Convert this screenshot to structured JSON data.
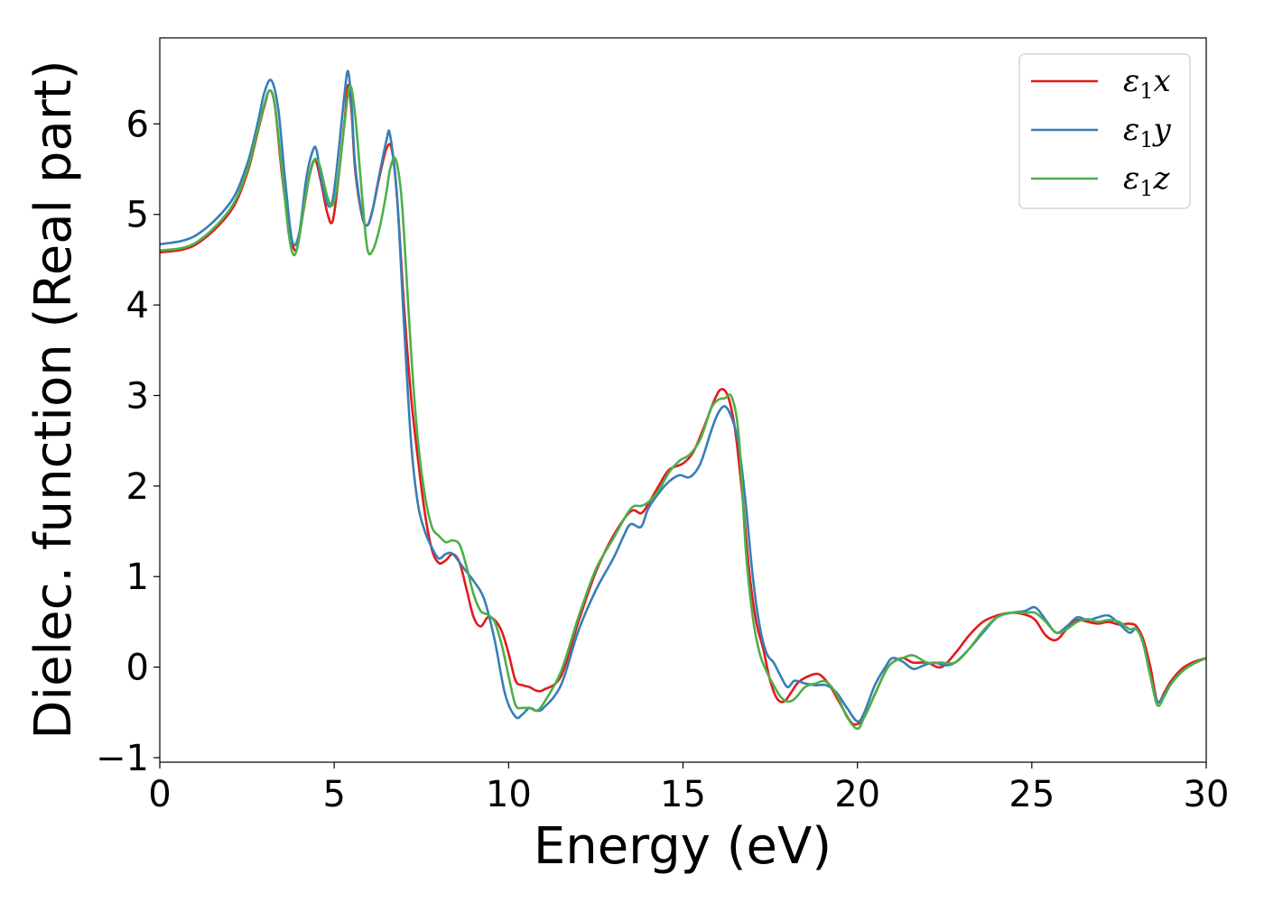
{
  "chart_data": {
    "type": "line",
    "title": "",
    "xlabel": "Energy (eV)",
    "ylabel": "Dielec. function (Real part)",
    "xlim": [
      0,
      30
    ],
    "ylim": [
      -1.05,
      6.95
    ],
    "xticks": [
      0,
      5,
      10,
      15,
      20,
      25,
      30
    ],
    "yticks": [
      -1,
      0,
      1,
      2,
      3,
      4,
      5,
      6
    ],
    "grid": false,
    "legend_position": "top-right",
    "series": [
      {
        "name": "ε1x",
        "legend_main": "ε",
        "legend_sub": "1",
        "legend_tail": "x",
        "color": "#e41a1c",
        "x": [
          0,
          1,
          2,
          2.5,
          2.8,
          3.0,
          3.15,
          3.3,
          3.5,
          3.7,
          3.9,
          4.1,
          4.3,
          4.45,
          4.6,
          4.8,
          4.95,
          5.1,
          5.3,
          5.4,
          5.5,
          5.6,
          5.8,
          5.95,
          6.1,
          6.3,
          6.5,
          6.65,
          6.8,
          7.0,
          7.2,
          7.4,
          7.6,
          7.8,
          8.0,
          8.2,
          8.4,
          8.6,
          8.8,
          9.0,
          9.2,
          9.4,
          9.6,
          9.8,
          10.0,
          10.2,
          10.4,
          10.6,
          10.8,
          11.0,
          11.5,
          12.0,
          12.5,
          13.0,
          13.5,
          13.8,
          14.0,
          14.3,
          14.6,
          15.0,
          15.3,
          15.6,
          15.9,
          16.1,
          16.3,
          16.5,
          16.7,
          16.9,
          17.1,
          17.3,
          17.5,
          17.7,
          17.9,
          18.1,
          18.3,
          18.6,
          18.9,
          19.2,
          19.5,
          19.8,
          20.0,
          20.2,
          20.5,
          20.8,
          21.0,
          21.3,
          21.6,
          22.0,
          22.4,
          22.8,
          23.2,
          23.6,
          24.0,
          24.4,
          24.8,
          25.1,
          25.4,
          25.7,
          26.0,
          26.3,
          26.6,
          26.9,
          27.2,
          27.5,
          27.8,
          28.0,
          28.2,
          28.4,
          28.6,
          28.8,
          29.0,
          29.3,
          29.6,
          30.0
        ],
        "y": [
          4.58,
          4.66,
          5.02,
          5.45,
          5.9,
          6.2,
          6.37,
          6.2,
          5.45,
          4.88,
          4.6,
          5.0,
          5.45,
          5.6,
          5.4,
          5.02,
          4.92,
          5.32,
          6.05,
          6.43,
          6.12,
          5.5,
          4.98,
          4.88,
          5.05,
          5.42,
          5.73,
          5.72,
          5.2,
          4.0,
          3.0,
          2.3,
          1.7,
          1.3,
          1.15,
          1.18,
          1.25,
          1.15,
          0.85,
          0.55,
          0.45,
          0.55,
          0.52,
          0.4,
          0.15,
          -0.15,
          -0.2,
          -0.22,
          -0.26,
          -0.25,
          -0.1,
          0.5,
          1.05,
          1.45,
          1.72,
          1.7,
          1.8,
          2.0,
          2.18,
          2.25,
          2.38,
          2.65,
          2.95,
          3.07,
          2.98,
          2.6,
          1.9,
          1.05,
          0.5,
          0.2,
          -0.15,
          -0.35,
          -0.38,
          -0.28,
          -0.17,
          -0.1,
          -0.08,
          -0.2,
          -0.4,
          -0.6,
          -0.63,
          -0.55,
          -0.3,
          -0.05,
          0.05,
          0.1,
          0.05,
          0.05,
          0.0,
          0.15,
          0.35,
          0.5,
          0.57,
          0.6,
          0.58,
          0.52,
          0.35,
          0.3,
          0.42,
          0.52,
          0.5,
          0.48,
          0.5,
          0.47,
          0.48,
          0.45,
          0.3,
          0.0,
          -0.38,
          -0.28,
          -0.15,
          -0.02,
          0.05,
          0.1
        ]
      },
      {
        "name": "ε1y",
        "legend_main": "ε",
        "legend_sub": "1",
        "legend_tail": "y",
        "color": "#377eb8",
        "x": [
          0,
          1,
          2,
          2.5,
          2.8,
          3.0,
          3.2,
          3.4,
          3.6,
          3.8,
          4.0,
          4.2,
          4.4,
          4.5,
          4.6,
          4.8,
          4.95,
          5.1,
          5.3,
          5.4,
          5.5,
          5.6,
          5.8,
          5.95,
          6.1,
          6.3,
          6.5,
          6.6,
          6.8,
          7.0,
          7.2,
          7.4,
          7.6,
          7.8,
          8.0,
          8.2,
          8.4,
          8.7,
          9.0,
          9.3,
          9.6,
          9.9,
          10.2,
          10.4,
          10.6,
          10.8,
          11.0,
          11.5,
          12.0,
          12.5,
          13.0,
          13.3,
          13.5,
          13.8,
          14.0,
          14.3,
          14.6,
          14.9,
          15.2,
          15.5,
          15.8,
          16.0,
          16.2,
          16.4,
          16.6,
          16.8,
          17.0,
          17.2,
          17.4,
          17.6,
          17.8,
          18.0,
          18.2,
          18.5,
          18.8,
          19.1,
          19.4,
          19.7,
          20.0,
          20.2,
          20.5,
          20.8,
          21.0,
          21.3,
          21.6,
          21.9,
          22.2,
          22.5,
          22.8,
          23.2,
          23.6,
          24.0,
          24.4,
          24.8,
          25.1,
          25.4,
          25.7,
          26.0,
          26.3,
          26.6,
          26.9,
          27.2,
          27.5,
          27.8,
          28.0,
          28.2,
          28.4,
          28.6,
          28.8,
          29.0,
          29.3,
          29.6,
          30.0
        ],
        "y": [
          4.67,
          4.76,
          5.12,
          5.55,
          6.0,
          6.35,
          6.48,
          6.15,
          5.35,
          4.7,
          4.8,
          5.4,
          5.72,
          5.7,
          5.45,
          5.12,
          5.15,
          5.6,
          6.35,
          6.58,
          6.2,
          5.55,
          5.0,
          4.88,
          5.05,
          5.45,
          5.82,
          5.88,
          5.2,
          3.8,
          2.5,
          1.8,
          1.5,
          1.32,
          1.2,
          1.25,
          1.25,
          1.1,
          0.95,
          0.75,
          0.3,
          -0.3,
          -0.55,
          -0.52,
          -0.45,
          -0.48,
          -0.45,
          -0.2,
          0.4,
          0.85,
          1.2,
          1.45,
          1.58,
          1.55,
          1.75,
          1.92,
          2.05,
          2.12,
          2.1,
          2.25,
          2.6,
          2.8,
          2.88,
          2.75,
          2.45,
          1.8,
          1.0,
          0.45,
          0.15,
          0.05,
          -0.1,
          -0.22,
          -0.15,
          -0.18,
          -0.2,
          -0.2,
          -0.28,
          -0.45,
          -0.6,
          -0.5,
          -0.2,
          0.0,
          0.1,
          0.06,
          -0.02,
          0.02,
          0.05,
          0.02,
          0.05,
          0.2,
          0.38,
          0.55,
          0.6,
          0.62,
          0.66,
          0.52,
          0.38,
          0.45,
          0.55,
          0.52,
          0.55,
          0.57,
          0.48,
          0.38,
          0.42,
          0.25,
          -0.1,
          -0.38,
          -0.3,
          -0.18,
          -0.05,
          0.03,
          0.1
        ]
      },
      {
        "name": "ε1z",
        "legend_main": "ε",
        "legend_sub": "1",
        "legend_tail": "z",
        "color": "#4daf4a",
        "x": [
          0,
          1,
          2,
          2.5,
          2.8,
          3.0,
          3.15,
          3.3,
          3.5,
          3.7,
          3.85,
          4.0,
          4.2,
          4.4,
          4.5,
          4.6,
          4.8,
          4.95,
          5.1,
          5.3,
          5.45,
          5.6,
          5.8,
          5.95,
          6.1,
          6.3,
          6.5,
          6.6,
          6.75,
          6.9,
          7.0,
          7.2,
          7.4,
          7.6,
          7.8,
          8.0,
          8.2,
          8.4,
          8.6,
          8.8,
          9.0,
          9.2,
          9.4,
          9.6,
          9.8,
          10.0,
          10.2,
          10.4,
          10.6,
          10.8,
          11.0,
          11.5,
          12.0,
          12.5,
          13.0,
          13.5,
          13.8,
          14.0,
          14.3,
          14.6,
          14.9,
          15.2,
          15.5,
          15.8,
          16.0,
          16.2,
          16.4,
          16.6,
          16.8,
          17.0,
          17.2,
          17.4,
          17.6,
          17.8,
          18.0,
          18.2,
          18.5,
          18.8,
          19.1,
          19.4,
          19.7,
          20.0,
          20.2,
          20.5,
          20.8,
          21.0,
          21.3,
          21.6,
          22.0,
          22.4,
          22.8,
          23.2,
          23.6,
          24.0,
          24.4,
          24.8,
          25.1,
          25.4,
          25.7,
          26.0,
          26.3,
          26.6,
          26.9,
          27.2,
          27.5,
          27.8,
          28.0,
          28.2,
          28.4,
          28.6,
          28.8,
          29.0,
          29.3,
          29.6,
          30.0
        ],
        "y": [
          4.6,
          4.68,
          5.05,
          5.48,
          5.92,
          6.22,
          6.37,
          6.2,
          5.5,
          4.78,
          4.55,
          4.75,
          5.25,
          5.58,
          5.6,
          5.52,
          5.2,
          5.1,
          5.35,
          6.02,
          6.42,
          6.1,
          5.2,
          4.62,
          4.6,
          4.85,
          5.25,
          5.5,
          5.62,
          5.3,
          4.8,
          3.5,
          2.5,
          1.9,
          1.55,
          1.45,
          1.38,
          1.4,
          1.35,
          1.1,
          0.8,
          0.62,
          0.58,
          0.5,
          0.25,
          -0.1,
          -0.42,
          -0.45,
          -0.45,
          -0.48,
          -0.4,
          -0.05,
          0.55,
          1.08,
          1.42,
          1.75,
          1.78,
          1.82,
          1.95,
          2.15,
          2.28,
          2.35,
          2.52,
          2.85,
          2.95,
          2.97,
          2.98,
          2.55,
          1.3,
          0.55,
          0.15,
          -0.05,
          -0.2,
          -0.33,
          -0.38,
          -0.35,
          -0.22,
          -0.18,
          -0.16,
          -0.3,
          -0.55,
          -0.68,
          -0.55,
          -0.3,
          -0.05,
          0.05,
          0.1,
          0.13,
          0.05,
          0.05,
          0.05,
          0.2,
          0.4,
          0.55,
          0.6,
          0.6,
          0.6,
          0.5,
          0.38,
          0.42,
          0.5,
          0.53,
          0.5,
          0.52,
          0.5,
          0.42,
          0.42,
          0.25,
          -0.1,
          -0.42,
          -0.32,
          -0.18,
          -0.05,
          0.03,
          0.1
        ]
      }
    ]
  }
}
